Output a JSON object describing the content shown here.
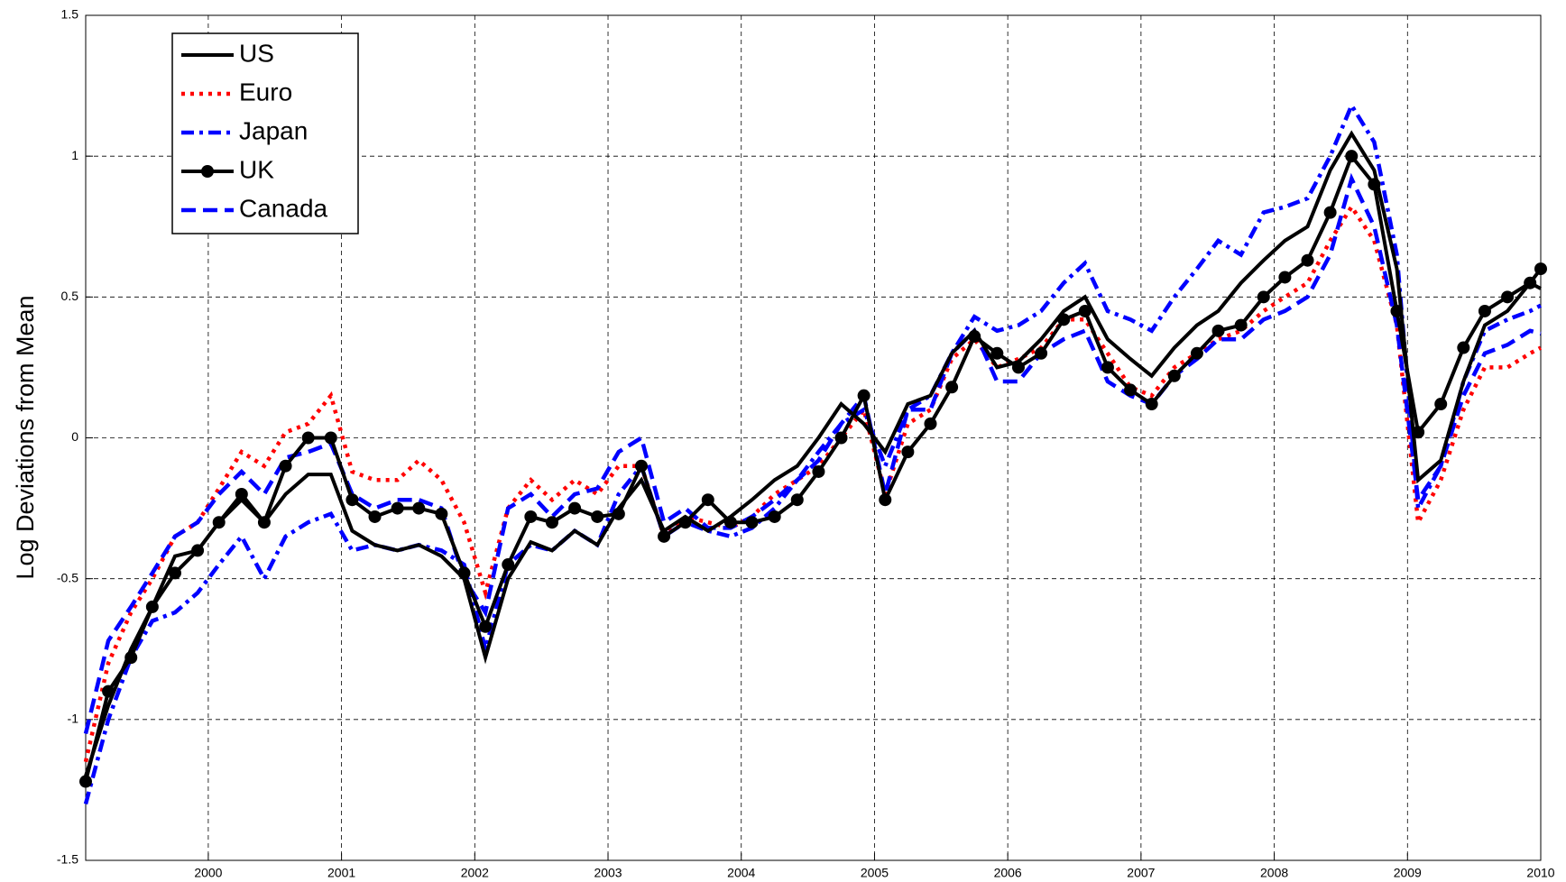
{
  "chart_data": {
    "type": "line",
    "ylabel": "Log Deviations from Mean",
    "x": [
      1999.08,
      1999.25,
      1999.42,
      1999.58,
      1999.75,
      1999.92,
      2000.08,
      2000.25,
      2000.42,
      2000.58,
      2000.75,
      2000.92,
      2001.08,
      2001.25,
      2001.42,
      2001.58,
      2001.75,
      2001.92,
      2002.08,
      2002.25,
      2002.42,
      2002.58,
      2002.75,
      2002.92,
      2003.08,
      2003.25,
      2003.42,
      2003.58,
      2003.75,
      2003.92,
      2004.08,
      2004.25,
      2004.42,
      2004.58,
      2004.75,
      2004.92,
      2005.08,
      2005.25,
      2005.42,
      2005.58,
      2005.75,
      2005.92,
      2006.08,
      2006.25,
      2006.42,
      2006.58,
      2006.75,
      2006.92,
      2007.08,
      2007.25,
      2007.42,
      2007.58,
      2007.75,
      2007.92,
      2008.08,
      2008.25,
      2008.42,
      2008.58,
      2008.75,
      2008.92,
      2009.08,
      2009.25,
      2009.42,
      2009.58,
      2009.75,
      2009.92,
      2010
    ],
    "series": [
      {
        "name": "US",
        "color": "#000000",
        "linestyle": "solid",
        "values": [
          -1.2,
          -0.95,
          -0.75,
          -0.6,
          -0.42,
          -0.4,
          -0.3,
          -0.22,
          -0.3,
          -0.2,
          -0.13,
          -0.13,
          -0.33,
          -0.38,
          -0.4,
          -0.38,
          -0.42,
          -0.5,
          -0.78,
          -0.5,
          -0.37,
          -0.4,
          -0.33,
          -0.38,
          -0.25,
          -0.15,
          -0.33,
          -0.28,
          -0.33,
          -0.28,
          -0.22,
          -0.15,
          -0.1,
          0,
          0.12,
          0.05,
          -0.05,
          0.12,
          0.15,
          0.3,
          0.38,
          0.25,
          0.27,
          0.35,
          0.45,
          0.5,
          0.35,
          0.28,
          0.22,
          0.32,
          0.4,
          0.45,
          0.55,
          0.63,
          0.7,
          0.75,
          0.95,
          1.08,
          0.95,
          0.6,
          -0.15,
          -0.08,
          0.2,
          0.4,
          0.45,
          0.55,
          0.53
        ]
      },
      {
        "name": "Euro",
        "color": "#ff0000",
        "linestyle": "dotted",
        "values": [
          -1.15,
          -0.8,
          -0.62,
          -0.5,
          -0.35,
          -0.3,
          -0.18,
          -0.05,
          -0.1,
          0.02,
          0.05,
          0.15,
          -0.12,
          -0.15,
          -0.15,
          -0.08,
          -0.15,
          -0.3,
          -0.55,
          -0.25,
          -0.15,
          -0.22,
          -0.15,
          -0.2,
          -0.1,
          -0.1,
          -0.35,
          -0.28,
          -0.3,
          -0.32,
          -0.28,
          -0.2,
          -0.15,
          -0.1,
          0,
          0.1,
          -0.2,
          0.05,
          0.1,
          0.28,
          0.35,
          0.25,
          0.28,
          0.32,
          0.42,
          0.42,
          0.3,
          0.18,
          0.15,
          0.25,
          0.3,
          0.35,
          0.38,
          0.45,
          0.5,
          0.55,
          0.7,
          0.82,
          0.7,
          0.4,
          -0.3,
          -0.15,
          0.1,
          0.25,
          0.25,
          0.3,
          0.32
        ]
      },
      {
        "name": "Japan",
        "color": "#0000ff",
        "linestyle": "dashdot",
        "values": [
          -1.3,
          -1,
          -0.78,
          -0.65,
          -0.62,
          -0.55,
          -0.45,
          -0.35,
          -0.5,
          -0.35,
          -0.3,
          -0.27,
          -0.4,
          -0.38,
          -0.4,
          -0.38,
          -0.4,
          -0.45,
          -0.75,
          -0.45,
          -0.38,
          -0.4,
          -0.33,
          -0.38,
          -0.2,
          -0.1,
          -0.35,
          -0.3,
          -0.33,
          -0.35,
          -0.32,
          -0.25,
          -0.15,
          -0.05,
          0.05,
          0.1,
          -0.1,
          0.1,
          0.15,
          0.3,
          0.43,
          0.38,
          0.4,
          0.45,
          0.55,
          0.62,
          0.45,
          0.42,
          0.38,
          0.5,
          0.6,
          0.7,
          0.65,
          0.8,
          0.82,
          0.85,
          1,
          1.18,
          1.05,
          0.65,
          -0.25,
          -0.1,
          0.2,
          0.38,
          0.42,
          0.45,
          0.47
        ]
      },
      {
        "name": "UK",
        "color": "#000000",
        "linestyle": "solid",
        "marker": "o",
        "values": [
          -1.22,
          -0.9,
          -0.78,
          -0.6,
          -0.48,
          -0.4,
          -0.3,
          -0.2,
          -0.3,
          -0.1,
          0,
          0,
          -0.22,
          -0.28,
          -0.25,
          -0.25,
          -0.27,
          -0.48,
          -0.67,
          -0.45,
          -0.28,
          -0.3,
          -0.25,
          -0.28,
          -0.27,
          -0.1,
          -0.35,
          -0.3,
          -0.22,
          -0.3,
          -0.3,
          -0.28,
          -0.22,
          -0.12,
          0,
          0.15,
          -0.22,
          -0.05,
          0.05,
          0.18,
          0.36,
          0.3,
          0.25,
          0.3,
          0.42,
          0.45,
          0.25,
          0.17,
          0.12,
          0.22,
          0.3,
          0.38,
          0.4,
          0.5,
          0.57,
          0.63,
          0.8,
          1,
          0.9,
          0.45,
          0.02,
          0.12,
          0.32,
          0.45,
          0.5,
          0.55,
          0.6
        ]
      },
      {
        "name": "Canada",
        "color": "#0000ff",
        "linestyle": "dashed",
        "values": [
          -1.05,
          -0.72,
          -0.6,
          -0.48,
          -0.35,
          -0.3,
          -0.2,
          -0.12,
          -0.2,
          -0.07,
          -0.05,
          -0.02,
          -0.2,
          -0.25,
          -0.22,
          -0.22,
          -0.25,
          -0.5,
          -0.62,
          -0.25,
          -0.2,
          -0.28,
          -0.2,
          -0.18,
          -0.05,
          0,
          -0.3,
          -0.25,
          -0.32,
          -0.32,
          -0.28,
          -0.22,
          -0.15,
          -0.08,
          0.05,
          0.15,
          -0.2,
          0.1,
          0.1,
          0.3,
          0.38,
          0.2,
          0.2,
          0.3,
          0.35,
          0.38,
          0.2,
          0.15,
          0.12,
          0.22,
          0.28,
          0.35,
          0.35,
          0.42,
          0.45,
          0.5,
          0.65,
          0.92,
          0.75,
          0.4,
          -0.22,
          -0.1,
          0.15,
          0.3,
          0.33,
          0.38,
          0.37
        ]
      }
    ],
    "xlim": [
      1999.08,
      2010
    ],
    "xticks": [
      2000,
      2001,
      2002,
      2003,
      2004,
      2005,
      2006,
      2007,
      2008,
      2009,
      2010
    ],
    "ylim": [
      -1.5,
      1.5
    ],
    "yticks": [
      -1.5,
      -1,
      -0.5,
      0,
      0.5,
      1,
      1.5
    ],
    "grid": true,
    "legend": "upper left"
  }
}
